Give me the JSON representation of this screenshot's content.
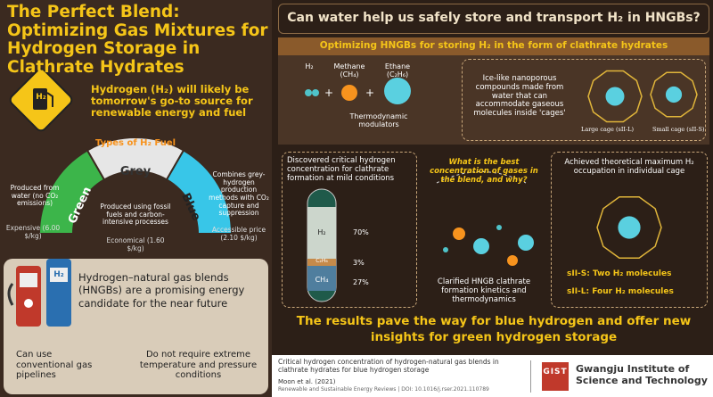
{
  "left": {
    "title": "The Perfect Blend: Optimizing Gas Mixtures for Hydrogen Storage in Clathrate Hydrates",
    "sign_label": "H₂",
    "intro": "Hydrogen (H₂) will likely be tomorrow's go-to source for renewable energy and fuel",
    "fuel_heading": "Types of H₂ Fuel",
    "fuels": [
      {
        "name": "Green",
        "description": "Produced from water (no CO₂ emissions)",
        "price": "Expensive (6.00 $/kg)"
      },
      {
        "name": "Grey",
        "description": "Produced using fossil fuels and carbon-intensive processes",
        "price": "Economical (1.60 $/kg)"
      },
      {
        "name": "Blue",
        "description": "Combines grey-hydrogen production methods with CO₂ capture and suppression",
        "price": "Accessible price (2.10 $/kg)"
      }
    ],
    "pump_label": "H₂",
    "hngb": "Hydrogen–natural gas blends (HNGBs) are a promising energy candidate for the near future",
    "benefits": [
      "Can use conventional gas pipelines",
      "Do not require extreme temperature and pressure conditions"
    ]
  },
  "right": {
    "question": "Can water help us safely store and transport H₂ in HNGBs?",
    "banner": "Optimizing HNGBs for storing H₂ in the form of clathrate hydrates",
    "molecules": [
      "H₂",
      "Methane (CH₄)",
      "Ethane (C₂H₆)"
    ],
    "modulators": "Thermodynamic modulators",
    "clathrate": "Ice-like nanoporous compounds made from water that can accommodate gaseous molecules inside 'cages'",
    "cages": [
      "Large cage (sII-L)",
      "Small cage (sII-S)"
    ],
    "finding1": "Discovered critical hydrogen concentration for clathrate formation at mild conditions",
    "tube": [
      {
        "gas": "H₂",
        "share": "70%"
      },
      {
        "gas": "C₂H₆",
        "share": "3%"
      },
      {
        "gas": "CH₄",
        "share": "27%"
      }
    ],
    "finding2_question": "What is the best concentration of gases in the blend, and why?",
    "finding2": "Clarified HNGB clathrate formation kinetics and thermodynamics",
    "finding3": "Achieved theoretical maximum H₂ occupation in individual cage",
    "occupation": [
      "sII-S: Two H₂ molecules",
      "sII-L: Four H₂ molecules"
    ],
    "conclusion": "The results pave the way for blue hydrogen and offer new insights for green hydrogen storage"
  },
  "footer": {
    "paper": "Critical hydrogen concentration of hydrogen-natural gas blends in clathrate hydrates for blue hydrogen storage",
    "authors": "Moon et al. (2021)",
    "journal": "Renewable and Sustainable Energy Reviews | DOI: 10.1016/j.rser.2021.110789",
    "logo": "GIST",
    "institute": "Gwangju Institute of Science and Technology"
  }
}
